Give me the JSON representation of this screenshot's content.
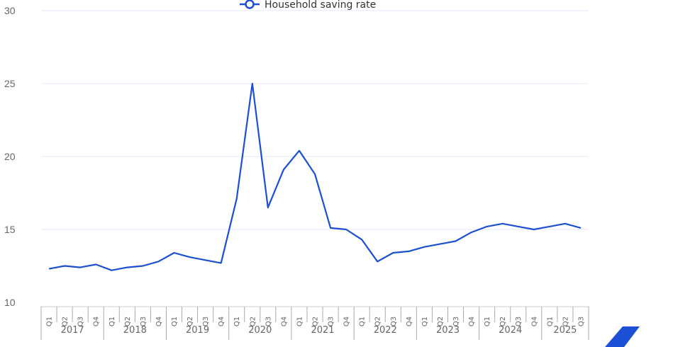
{
  "legend": {
    "label": "Household saving rate"
  },
  "colors": {
    "series": "#1c4fd1",
    "grid": "#e3e8f5",
    "axis_text": "#666666",
    "logo": "#1a4fd6"
  },
  "chart_data": {
    "type": "line",
    "title": "",
    "xlabel": "",
    "ylabel": "",
    "ylim": [
      10,
      30
    ],
    "yticks": [
      10,
      15,
      20,
      25,
      30
    ],
    "grid": true,
    "legend_position": "top",
    "years": [
      "2017",
      "2018",
      "2019",
      "2020",
      "2021",
      "2022",
      "2023",
      "2024",
      "2025"
    ],
    "categories": [
      "2017 Q1",
      "2017 Q2",
      "2017 Q3",
      "2017 Q4",
      "2018 Q1",
      "2018 Q2",
      "2018 Q3",
      "2018 Q4",
      "2019 Q1",
      "2019 Q2",
      "2019 Q3",
      "2019 Q4",
      "2020 Q1",
      "2020 Q2",
      "2020 Q3",
      "2020 Q4",
      "2021 Q1",
      "2021 Q2",
      "2021 Q3",
      "2021 Q4",
      "2022 Q1",
      "2022 Q2",
      "2022 Q3",
      "2022 Q4",
      "2023 Q1",
      "2023 Q2",
      "2023 Q3",
      "2023 Q4",
      "2024 Q1",
      "2024 Q2",
      "2024 Q3",
      "2024 Q4",
      "2025 Q1",
      "2025 Q2",
      "2025 Q3"
    ],
    "series": [
      {
        "name": "Household saving rate",
        "values": [
          12.3,
          12.5,
          12.4,
          12.6,
          12.2,
          12.4,
          12.5,
          12.8,
          13.4,
          13.1,
          12.9,
          12.7,
          17.1,
          25.0,
          16.5,
          19.1,
          20.4,
          18.8,
          15.1,
          15.0,
          14.3,
          12.8,
          13.4,
          13.5,
          13.8,
          14.0,
          14.2,
          14.8,
          15.2,
          15.4,
          15.2,
          15.0,
          15.2,
          15.4,
          15.1
        ]
      }
    ]
  }
}
